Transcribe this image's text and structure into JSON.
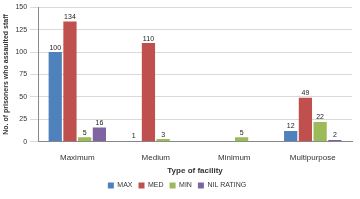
{
  "chart_data": {
    "type": "bar",
    "x_label": "Type of facility",
    "y_label": "No. of prisoners who assaulted staff",
    "categories": [
      "Maximum",
      "Medium",
      "Minimum",
      "Multipurpose"
    ],
    "series": [
      {
        "name": "MAX",
        "color": "#4f81bd",
        "values": [
          100,
          1,
          null,
          12
        ]
      },
      {
        "name": "MED",
        "color": "#c0504d",
        "values": [
          134,
          110,
          null,
          49
        ]
      },
      {
        "name": "MIN",
        "color": "#9bbb59",
        "values": [
          5,
          3,
          5,
          22
        ]
      },
      {
        "name": "NIL RATING",
        "color": "#8064a2",
        "values": [
          16,
          null,
          null,
          2
        ]
      }
    ],
    "ylim": [
      0,
      150
    ],
    "yticks": [
      0,
      25,
      50,
      75,
      100,
      125,
      150
    ],
    "grid": true,
    "legend": "bottom",
    "data_labels": true
  }
}
